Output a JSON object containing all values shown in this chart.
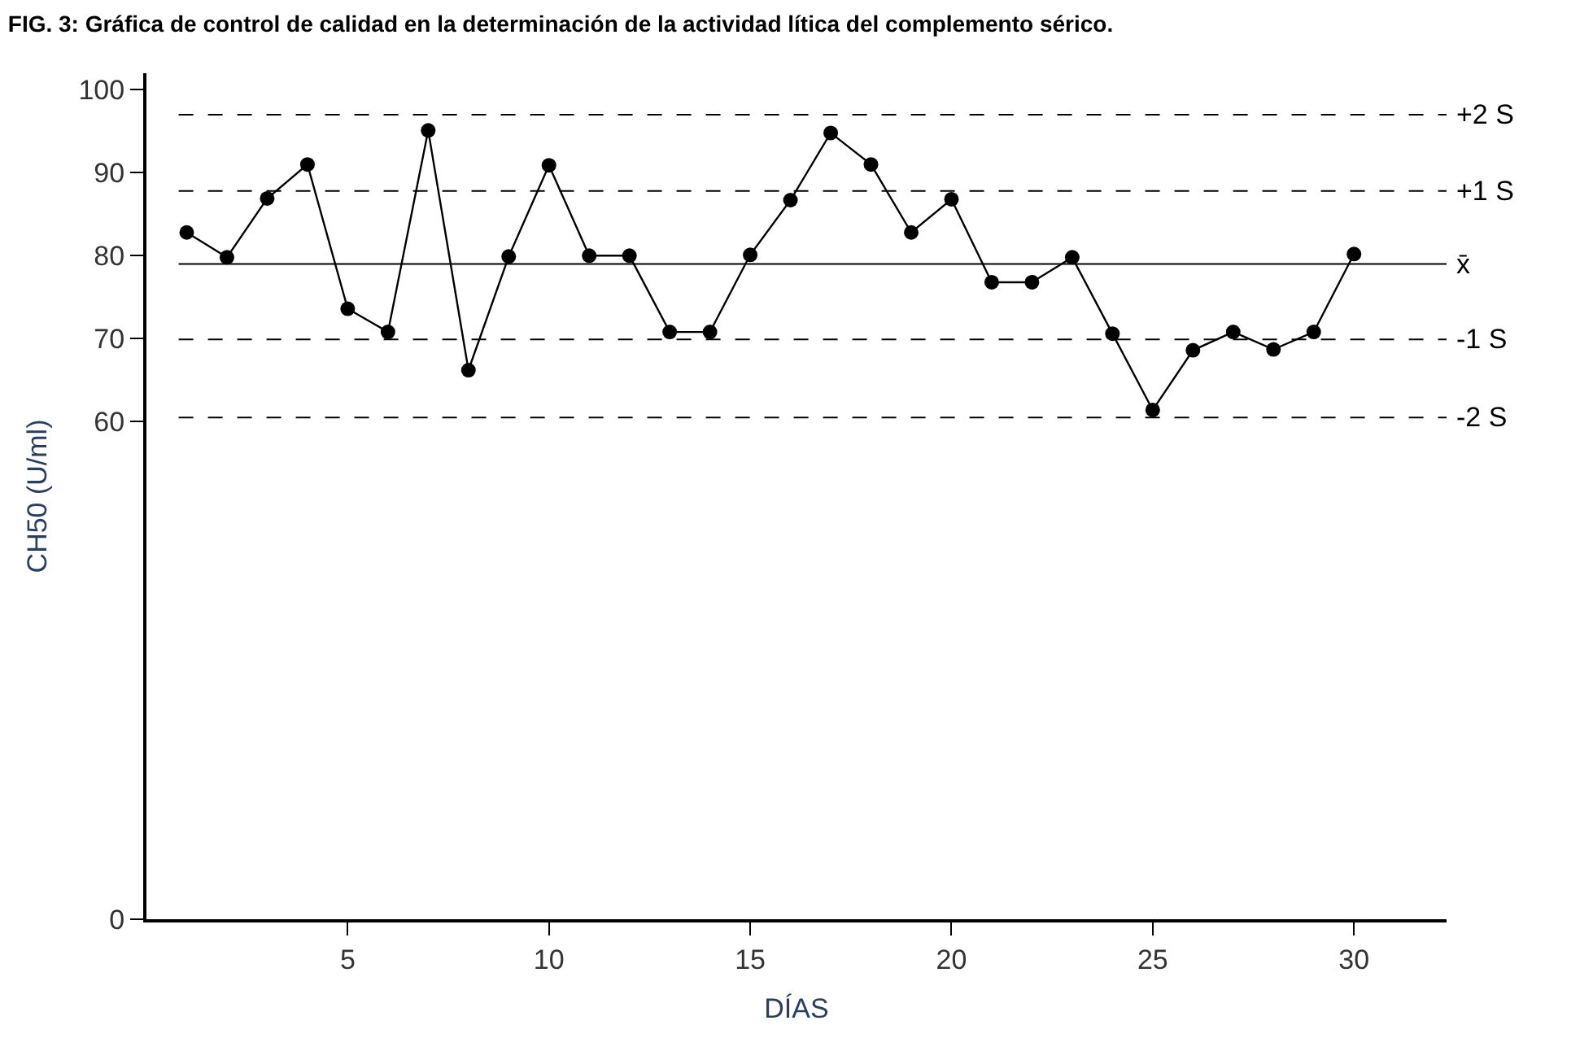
{
  "chart_data": {
    "type": "line",
    "title": "FIG. 3: Gráfica de control de calidad en la determinación de la actividad lítica del complemento sérico.",
    "xlabel": "DÍAS",
    "ylabel": "CH50 (U/ml)",
    "x": [
      1,
      2,
      3,
      4,
      5,
      6,
      7,
      8,
      9,
      10,
      11,
      12,
      13,
      14,
      15,
      16,
      17,
      18,
      19,
      20,
      21,
      22,
      23,
      24,
      25,
      26,
      27,
      28,
      29,
      30
    ],
    "series": [
      {
        "color": "#000000",
        "values": [
          82.8,
          79.8,
          86.9,
          91,
          73.6,
          70.8,
          95.1,
          66.2,
          79.9,
          90.9,
          80,
          80,
          70.8,
          70.8,
          80.1,
          86.7,
          94.8,
          91,
          82.8,
          86.8,
          76.8,
          76.8,
          79.8,
          70.6,
          61.4,
          68.6,
          70.8,
          68.7,
          70.8,
          80.2
        ]
      }
    ],
    "marker": "circle",
    "line_style": "solid",
    "xlim": [
      0,
      32.3
    ],
    "xticks": [
      5,
      10,
      15,
      20,
      25,
      30
    ],
    "ylim": [
      0,
      102
    ],
    "yticks": [
      0,
      60,
      70,
      80,
      90,
      100
    ],
    "ref_lines": [
      {
        "axis": "y",
        "value": 97,
        "label": "+2 S",
        "line_style": "dashed",
        "color": "#000000"
      },
      {
        "axis": "y",
        "value": 87.8,
        "label": "+1 S",
        "line_style": "dashed",
        "color": "#000000"
      },
      {
        "axis": "y",
        "value": 79,
        "label": "x̄",
        "line_style": "solid",
        "color": "#000000"
      },
      {
        "axis": "y",
        "value": 69.9,
        "label": "-1 S",
        "line_style": "dashed",
        "color": "#000000"
      },
      {
        "axis": "y",
        "value": 60.5,
        "label": "-2 S",
        "line_style": "dashed",
        "color": "#000000"
      }
    ]
  }
}
